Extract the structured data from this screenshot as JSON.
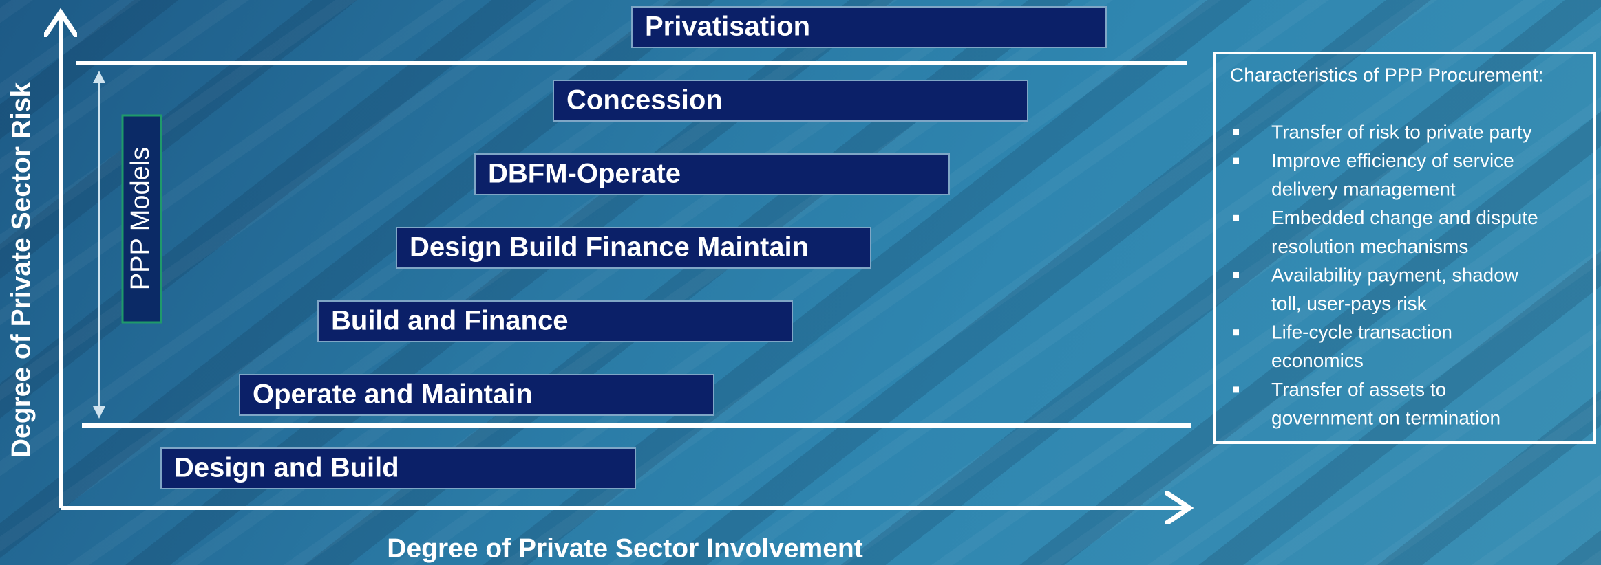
{
  "axis": {
    "y_label": "Degree of Private Sector Risk",
    "x_label": "Degree of Private Sector Involvement"
  },
  "ppp_label": "PPP Models",
  "models": [
    "Privatisation",
    "Concession",
    "DBFM-Operate",
    "Design Build Finance Maintain",
    "Build and Finance",
    "Operate and Maintain",
    "Design and Build"
  ],
  "characteristics": {
    "title": "Characteristics of PPP Procurement:",
    "items": [
      [
        "Transfer of risk to private party"
      ],
      [
        "Improve efficiency of service",
        "delivery management"
      ],
      [
        "Embedded change and dispute",
        "resolution mechanisms"
      ],
      [
        "Availability payment, shadow",
        "toll, user-pays risk"
      ],
      [
        "Life-cycle transaction",
        "economics"
      ],
      [
        "Transfer of assets to",
        "government on termination"
      ]
    ]
  }
}
